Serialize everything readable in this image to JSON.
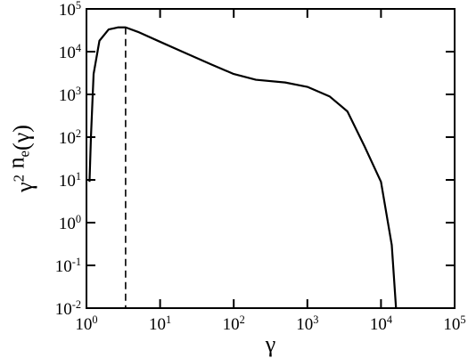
{
  "chart_data": {
    "type": "line",
    "x_label": "γ",
    "y_label": "γ^2 n_e(γ)",
    "x": [
      1.1,
      1.15,
      1.25,
      1.5,
      2,
      2.7,
      3.4,
      5,
      10,
      20,
      50,
      100,
      200,
      500,
      1000,
      2000,
      3500,
      6000,
      10000,
      14000,
      16000
    ],
    "series": [
      {
        "color": "#000000",
        "values": [
          9,
          100,
          3000,
          18000,
          33000,
          37000,
          37000,
          29000,
          17000,
          10000,
          5000,
          3000,
          2200,
          1900,
          1500,
          900,
          400,
          60,
          9,
          0.3,
          0.01
        ]
      }
    ],
    "vline": 3.4,
    "xscale": "log",
    "yscale": "log",
    "xlim": [
      1,
      100000
    ],
    "ylim": [
      0.01,
      100000
    ],
    "xticks": [
      {
        "value": 1,
        "label": "10^0"
      },
      {
        "value": 10,
        "label": "10^1"
      },
      {
        "value": 100,
        "label": "10^2"
      },
      {
        "value": 1000,
        "label": "10^3"
      },
      {
        "value": 10000,
        "label": "10^4"
      },
      {
        "value": 100000,
        "label": "10^5"
      }
    ],
    "yticks": [
      {
        "value": 0.01,
        "label": "10^-2"
      },
      {
        "value": 0.1,
        "label": "10^-1"
      },
      {
        "value": 1,
        "label": "10^0"
      },
      {
        "value": 10,
        "label": "10^1"
      },
      {
        "value": 100,
        "label": "10^2"
      },
      {
        "value": 1000,
        "label": "10^3"
      },
      {
        "value": 10000,
        "label": "10^4"
      },
      {
        "value": 100000,
        "label": "10^5"
      }
    ],
    "grid": false
  }
}
